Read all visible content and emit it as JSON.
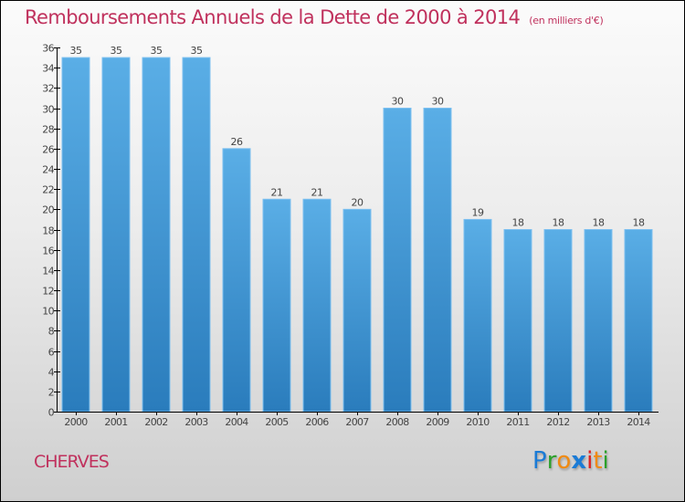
{
  "header": {
    "title": "Remboursements Annuels de la Dette de 2000 à 2014",
    "unit": "(en milliers d'€)"
  },
  "footer": {
    "commune": "CHERVES",
    "logo_letters": [
      {
        "char": "P",
        "color": "#1a7bd6"
      },
      {
        "char": "r",
        "color": "#2aa02a"
      },
      {
        "char": "o",
        "color": "#f08a10"
      },
      {
        "char": "x",
        "color": "#1a7bd6"
      },
      {
        "char": "i",
        "color": "#e02020"
      },
      {
        "char": "t",
        "color": "#f08a10"
      },
      {
        "char": "i",
        "color": "#2aa02a"
      }
    ]
  },
  "colors": {
    "title": "#c0315d",
    "bar_top": "#5aaee6",
    "bar_bottom": "#2a7cbc",
    "bar_edge": "#7cc0f0",
    "axis": "#000000",
    "text": "#444444"
  },
  "chart_data": {
    "type": "bar",
    "title": "Remboursements Annuels de la Dette de 2000 à 2014",
    "subtitle": "(en milliers d'€)",
    "xlabel": "",
    "ylabel": "",
    "categories": [
      "2000",
      "2001",
      "2002",
      "2003",
      "2004",
      "2005",
      "2006",
      "2007",
      "2008",
      "2009",
      "2010",
      "2011",
      "2012",
      "2013",
      "2014"
    ],
    "values": [
      35,
      35,
      35,
      35,
      26,
      21,
      21,
      20,
      30,
      30,
      19,
      18,
      18,
      18,
      18
    ],
    "data_labels": [
      "35",
      "35",
      "35",
      "35",
      "26",
      "21",
      "21",
      "20",
      "30",
      "30",
      "19",
      "18",
      "18",
      "18",
      "18"
    ],
    "ylim": [
      0,
      36
    ],
    "yticks": [
      0,
      2,
      4,
      6,
      8,
      10,
      12,
      14,
      16,
      18,
      20,
      22,
      24,
      26,
      28,
      30,
      32,
      34,
      36
    ],
    "grid": false,
    "legend": "none"
  }
}
